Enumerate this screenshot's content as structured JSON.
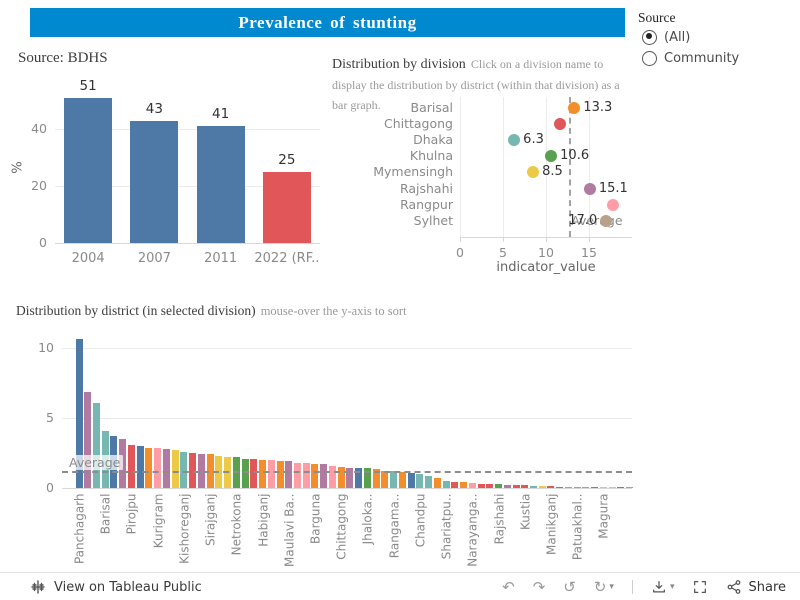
{
  "colors": {
    "accent": "#0089cf",
    "trend_blue": "#4e79a7",
    "highlight_red": "#e15759",
    "average_line": "#8c8c8c"
  },
  "header": {
    "title": "Prevalence of stunting"
  },
  "source_filter": {
    "label": "Source",
    "options": [
      {
        "label": "(All)",
        "selected": true
      },
      {
        "label": "Community",
        "selected": false
      }
    ]
  },
  "toolbar": {
    "view_label": "View on Tableau Public",
    "share_label": "Share",
    "buttons": [
      "undo",
      "redo",
      "revert",
      "refresh",
      "download",
      "fullscreen",
      "share"
    ]
  },
  "chart_data": [
    {
      "id": "trend",
      "type": "bar",
      "title": "Source: BDHS",
      "ylabel": "%",
      "yticks": [
        0,
        20,
        40
      ],
      "ylim": [
        0,
        52
      ],
      "categories": [
        "2004",
        "2007",
        "2011",
        "2022 (RF.."
      ],
      "values": [
        51,
        43,
        41,
        25
      ],
      "colors": [
        "#4e79a7",
        "#4e79a7",
        "#4e79a7",
        "#e15759"
      ],
      "grid": "horizontal"
    },
    {
      "id": "division-scatter",
      "type": "scatter",
      "title": "Distribution by division",
      "subtitle": "Click on a division name to display the distribution by district (within that division) as a bar graph.",
      "xlabel": "indicator_value",
      "xticks": [
        0,
        5,
        10,
        15
      ],
      "xlim": [
        0,
        20
      ],
      "average": 12.7,
      "average_label": "Average",
      "grid": "vertical",
      "points": [
        {
          "division": "Barisal",
          "value": 13.3,
          "label": "13.3",
          "label_side": "right",
          "color": "#f28e2b"
        },
        {
          "division": "Chittagong",
          "value": 11.6,
          "label": "",
          "label_side": "right",
          "color": "#e15759"
        },
        {
          "division": "Dhaka",
          "value": 6.3,
          "label": "6.3",
          "label_side": "right",
          "color": "#76b7b2"
        },
        {
          "division": "Khulna",
          "value": 10.6,
          "label": "10.6",
          "label_side": "right",
          "color": "#59a14f"
        },
        {
          "division": "Mymensingh",
          "value": 8.5,
          "label": "8.5",
          "label_side": "right",
          "color": "#edc948"
        },
        {
          "division": "Rajshahi",
          "value": 15.1,
          "label": "15.1",
          "label_side": "right",
          "color": "#b07aa1"
        },
        {
          "division": "Rangpur",
          "value": 17.8,
          "label": "",
          "label_side": "right",
          "color": "#ff9da7"
        },
        {
          "division": "Sylhet",
          "value": 17.0,
          "label": "17.0",
          "label_side": "left",
          "color": "#b9a089"
        }
      ]
    },
    {
      "id": "district-bars",
      "type": "bar",
      "title": "Distribution by district (in selected division)",
      "subtitle": "mouse-over the y-axis to sort",
      "yticks": [
        0,
        5,
        10
      ],
      "ylim": [
        0,
        11.6
      ],
      "average": 1.22,
      "average_label": "Average",
      "label_every": 3,
      "labels": [
        "Panchagarh",
        "Barisal",
        "Pirojpu",
        "Kurigram",
        "Kishoreganj",
        "Sirajganj",
        "Netrokona",
        "Habiganj",
        "Maulavi Ba..",
        "Barguna",
        "Chittagong",
        "Jhaloka..",
        "Rangama..",
        "Chandpu",
        "Shariatpu..",
        "Narayanga..",
        "Rajshahi",
        "Kustia",
        "Manikganj",
        "Patuakhal..",
        "Magura"
      ],
      "values": [
        10.7,
        6.9,
        6.1,
        4.1,
        3.7,
        3.5,
        3.1,
        3.0,
        2.9,
        2.9,
        2.8,
        2.7,
        2.6,
        2.5,
        2.4,
        2.4,
        2.3,
        2.2,
        2.2,
        2.1,
        2.1,
        2.0,
        2.0,
        1.9,
        1.9,
        1.8,
        1.8,
        1.7,
        1.7,
        1.6,
        1.5,
        1.45,
        1.4,
        1.4,
        1.35,
        1.2,
        1.2,
        1.15,
        1.1,
        1.0,
        0.85,
        0.75,
        0.5,
        0.45,
        0.4,
        0.35,
        0.3,
        0.3,
        0.3,
        0.25,
        0.2,
        0.2,
        0.15,
        0.15,
        0.15,
        0.1,
        0.1,
        0.1,
        0.08,
        0.05,
        0.05,
        0.04,
        0.03,
        0.02
      ],
      "colors": [
        "#4e79a7",
        "#b07aa1",
        "#76b7b2",
        "#76b7b2",
        "#4e79a7",
        "#b07aa1",
        "#e15759",
        "#4e79a7",
        "#f28e2b",
        "#ff9da7",
        "#b07aa1",
        "#edc948",
        "#76b7b2",
        "#e15759",
        "#b07aa1",
        "#f28e2b",
        "#edc948",
        "#edc948",
        "#59a14f",
        "#59a14f",
        "#e15759",
        "#f28e2b",
        "#ff9da7",
        "#f28e2b",
        "#b07aa1",
        "#ff9da7",
        "#ff9da7",
        "#f28e2b",
        "#b07aa1",
        "#ff9da7",
        "#f28e2b",
        "#b07aa1",
        "#4e79a7",
        "#59a14f",
        "#f28e2b",
        "#f28e2b",
        "#76b7b2",
        "#f28e2b",
        "#4e79a7",
        "#76b7b2",
        "#76b7b2",
        "#f28e2b",
        "#76b7b2",
        "#e15759",
        "#f28e2b",
        "#ff9da7",
        "#e15759",
        "#e15759",
        "#59a14f",
        "#b07aa1",
        "#e15759",
        "#e15759",
        "#76b7b2",
        "#edc948",
        "#e15759",
        "#e15759",
        "#76b7b2",
        "#f28e2b",
        "#f28e2b",
        "#e15759",
        "#edc948",
        "#edc948",
        "#e15759",
        "#76b7b2"
      ]
    }
  ]
}
